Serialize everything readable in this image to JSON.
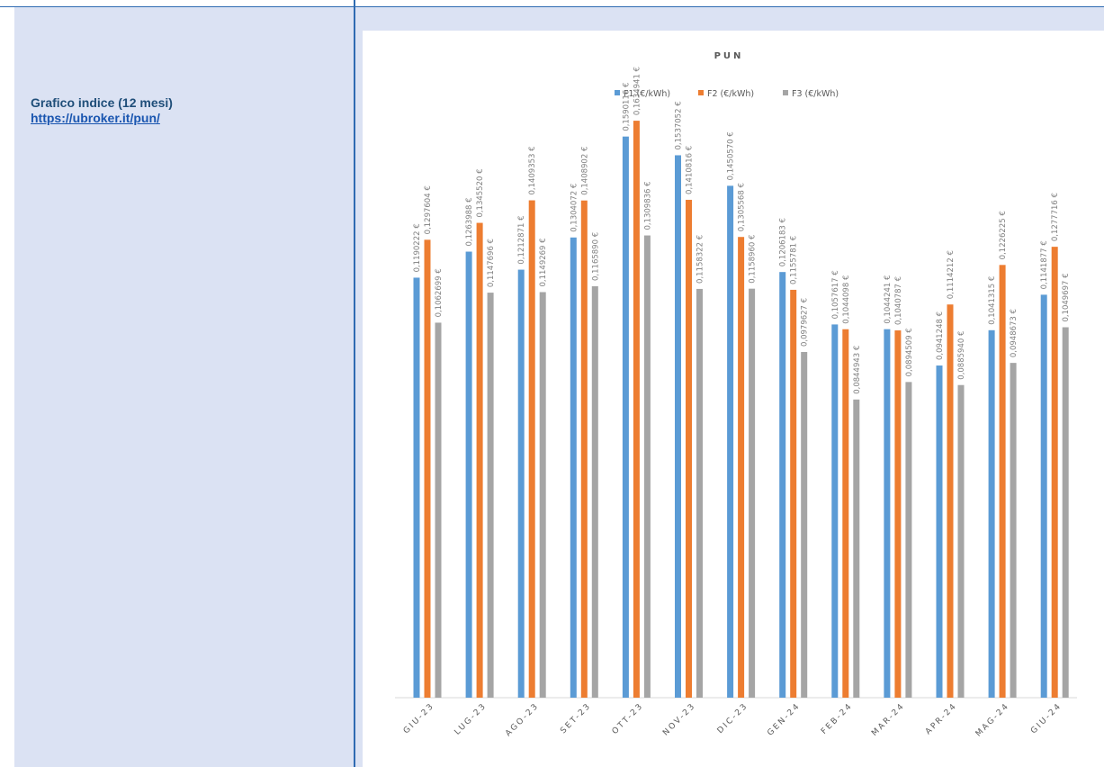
{
  "sidebar": {
    "title": "Grafico indice (12 mesi)",
    "link": "https://ubroker.it/pun/"
  },
  "colors": {
    "F1": "#5b9bd5",
    "F2": "#ed7d31",
    "F3": "#a5a5a5",
    "accent": "#2f6bb2",
    "panel": "#dbe2f3"
  },
  "chart_data": {
    "type": "bar",
    "title": "PUN",
    "legend_position": "top",
    "grid": false,
    "ylim": [
      0,
      0.18
    ],
    "categories": [
      "GIU-23",
      "LUG-23",
      "AGO-23",
      "SET-23",
      "OTT-23",
      "NOV-23",
      "DIC-23",
      "GEN-24",
      "FEB-24",
      "MAR-24",
      "APR-24",
      "MAG-24",
      "GIU-24"
    ],
    "series": [
      {
        "name": "F1  (€/kWh)",
        "color": "#5b9bd5",
        "values": [
          0.1190222,
          0.1263988,
          0.1212871,
          0.1304072,
          0.1590116,
          0.1537052,
          0.145057,
          0.1206183,
          0.1057617,
          0.1044241,
          0.0941248,
          0.1041315,
          0.1141877
        ],
        "labels": [
          "0,1190222 €",
          "0,1263988 €",
          "0,1212871 €",
          "0,1304072 €",
          "0,1590116 €",
          "0,1537052 €",
          "0,1450570 €",
          "0,1206183 €",
          "0,1057617 €",
          "0,1044241 €",
          "0,0941248 €",
          "0,1041315 €",
          "0,1141877 €"
        ]
      },
      {
        "name": "F2  (€/kWh)",
        "color": "#ed7d31",
        "values": [
          0.1297604,
          0.134552,
          0.1409353,
          0.1408902,
          0.1634941,
          0.1410816,
          0.1305568,
          0.1155781,
          0.1044098,
          0.1040787,
          0.1114212,
          0.1226225,
          0.1277716
        ],
        "labels": [
          "0,1297604 €",
          "0,1345520 €",
          "0,1409353 €",
          "0,1408902 €",
          "0,1634941 €",
          "0,1410816 €",
          "0,1305568 €",
          "0,1155781 €",
          "0,1044098 €",
          "0,1040787 €",
          "0,1114212 €",
          "0,1226225 €",
          "0,1277716 €"
        ]
      },
      {
        "name": "F3  (€/kWh)",
        "color": "#a5a5a5",
        "values": [
          0.1062699,
          0.1147696,
          0.1149269,
          0.116589,
          0.1309836,
          0.1158322,
          0.115896,
          0.0979627,
          0.0844943,
          0.0894509,
          0.088594,
          0.0948673,
          0.1049697
        ],
        "labels": [
          "0,1062699 €",
          "0,1147696 €",
          "0,1149269 €",
          "0,1165890 €",
          "0,1309836 €",
          "0,1158322 €",
          "0,1158960 €",
          "0,0979627 €",
          "0,0844943 €",
          "0,0894509 €",
          "0,0885940 €",
          "0,0948673 €",
          "0,1049697 €"
        ]
      }
    ]
  }
}
